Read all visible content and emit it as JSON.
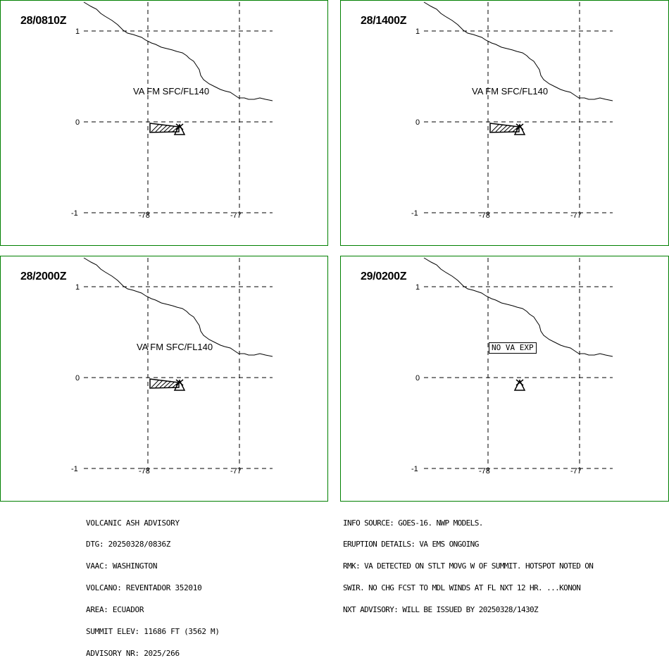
{
  "panels": [
    {
      "time": "28/0810Z",
      "label": "VA FM SFC/FL140",
      "ash": true
    },
    {
      "time": "28/1400Z",
      "label": "VA FM SFC/FL140",
      "ash": true
    },
    {
      "time": "28/2000Z",
      "label": "VA FM SFC/FL140",
      "ash": true
    },
    {
      "time": "29/0200Z",
      "label": "NO VA EXP",
      "ash": false
    }
  ],
  "axes": {
    "lat_labels": [
      "1",
      "0",
      "-1"
    ],
    "lon_labels": [
      "-78",
      "-77"
    ]
  },
  "advisory_left": [
    "VOLCANIC ASH ADVISORY",
    "DTG: 20250328/0836Z",
    "VAAC: WASHINGTON",
    "VOLCANO: REVENTADOR 352010",
    "AREA: ECUADOR",
    "SUMMIT ELEV: 11686 FT (3562 M)",
    "ADVISORY NR: 2025/266"
  ],
  "advisory_right": [
    "INFO SOURCE: GOES-16. NWP MODELS.",
    "ERUPTION DETAILS: VA EMS ONGOING",
    "RMK: VA DETECTED ON STLT MOVG W OF SUMMIT. HOTSPOT NOTED ON",
    "SWIR. NO CHG FCST TO MDL WINDS AT FL NXT 12 HR. ...KONON",
    "NXT ADVISORY: WILL BE ISSUED BY 20250328/1430Z"
  ],
  "colors": {
    "panel_border": "#008000",
    "lines": "#000000"
  }
}
